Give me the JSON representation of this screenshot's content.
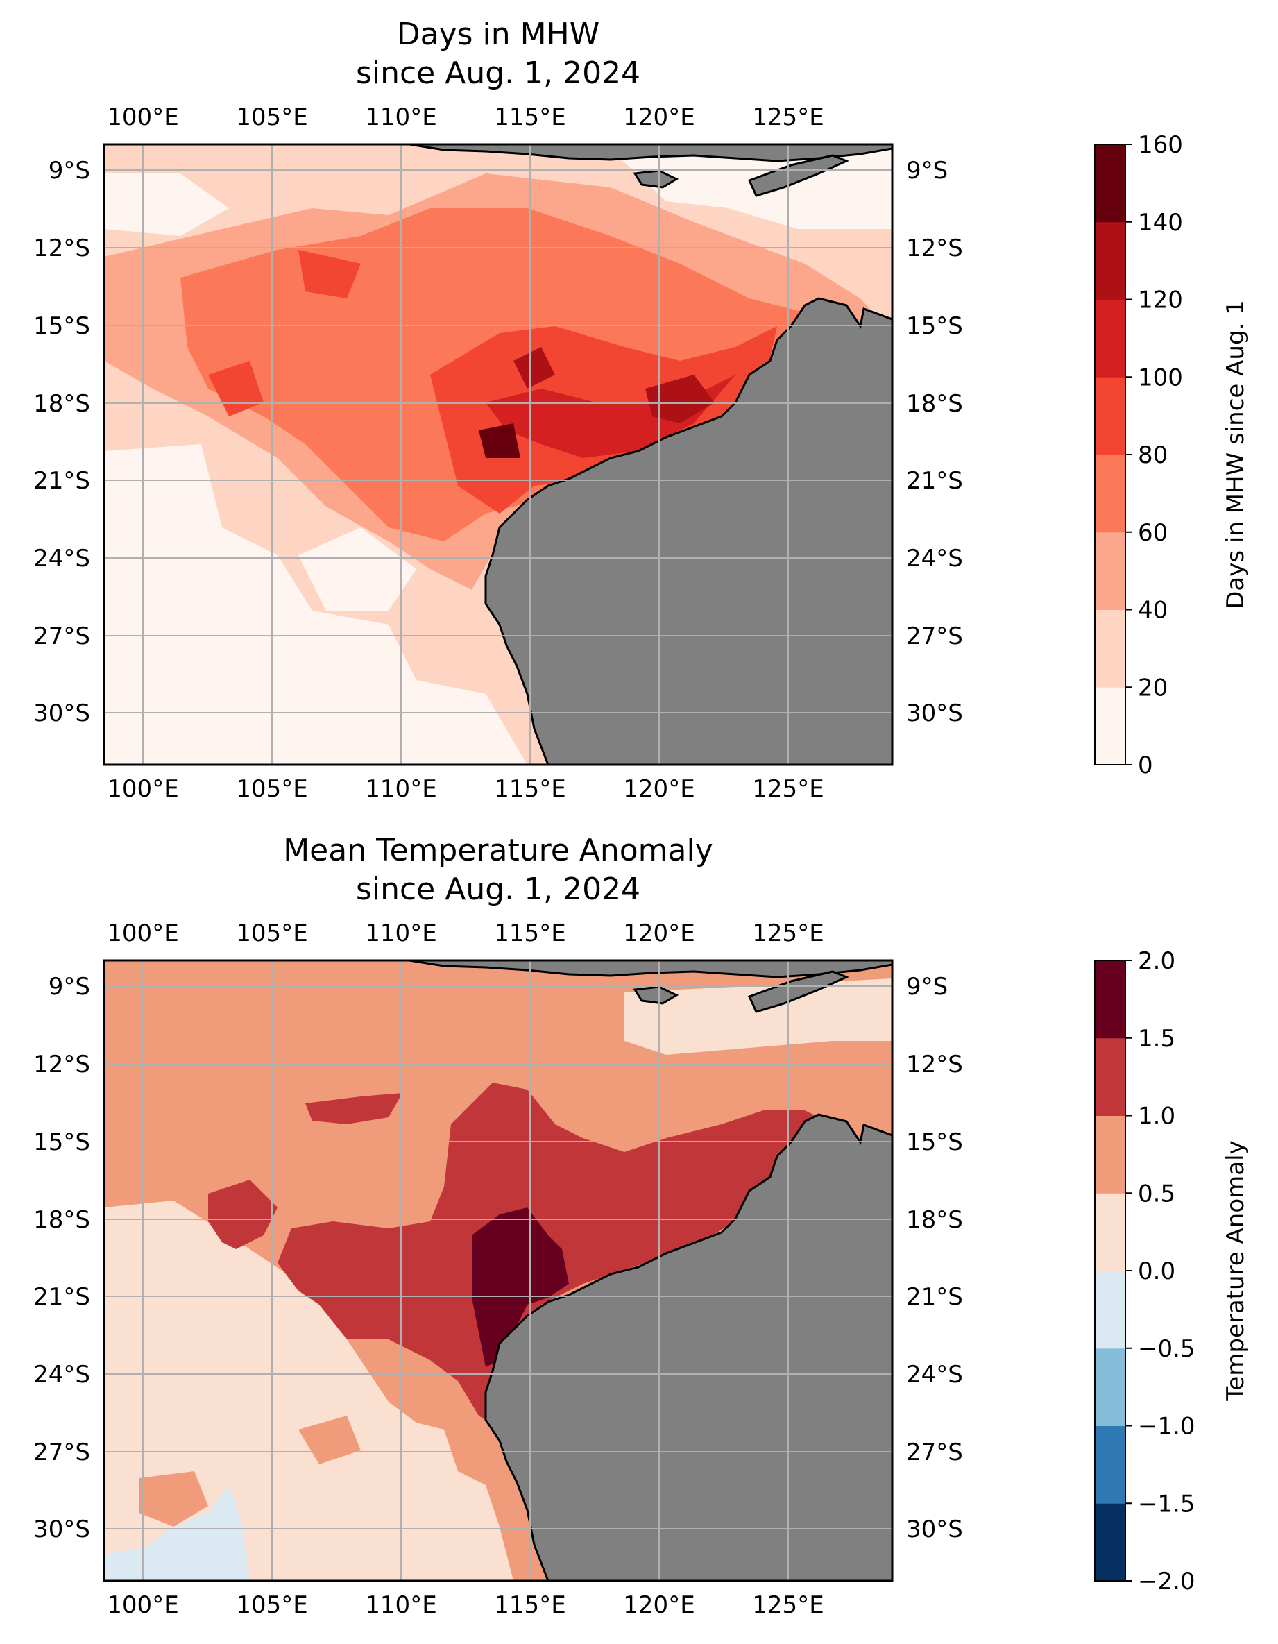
{
  "maps": [
    {
      "id": "mhw",
      "title_line1": "Days in MHW",
      "title_line2": "since Aug. 1, 2024",
      "lon_range": [
        98.5,
        129
      ],
      "lat_range": [
        -32,
        -8
      ],
      "lon_ticks": [
        "100°E",
        "105°E",
        "110°E",
        "115°E",
        "120°E",
        "125°E"
      ],
      "lat_ticks": [
        "9°S",
        "12°S",
        "15°S",
        "18°S",
        "21°S",
        "24°S",
        "27°S",
        "30°S"
      ],
      "land_color": "#808080",
      "colorbar": {
        "label": "Days in MHW since Aug. 1",
        "ticks": [
          "0",
          "20",
          "40",
          "60",
          "80",
          "100",
          "120",
          "140",
          "160"
        ],
        "colors": [
          "#fff5f0",
          "#fdd5c2",
          "#fca78b",
          "#fb7858",
          "#f24633",
          "#d42020",
          "#ad1116",
          "#67000d"
        ]
      }
    },
    {
      "id": "anomaly",
      "title_line1": "Mean Temperature Anomaly",
      "title_line2": "since Aug. 1, 2024",
      "lon_range": [
        98.5,
        129
      ],
      "lat_range": [
        -32,
        -8
      ],
      "lon_ticks": [
        "100°E",
        "105°E",
        "110°E",
        "115°E",
        "120°E",
        "125°E"
      ],
      "lat_ticks": [
        "9°S",
        "12°S",
        "15°S",
        "18°S",
        "21°S",
        "24°S",
        "27°S",
        "30°S"
      ],
      "land_color": "#808080",
      "colorbar": {
        "label": "Temperature Anomaly",
        "ticks": [
          "−2.0",
          "−1.5",
          "−1.0",
          "−0.5",
          "0.0",
          "0.5",
          "1.0",
          "1.5",
          "2.0"
        ],
        "colors": [
          "#053061",
          "#2f79b5",
          "#86bdda",
          "#dbe9f2",
          "#f9e0d1",
          "#f09c7b",
          "#c13639",
          "#67001f"
        ]
      }
    }
  ]
}
